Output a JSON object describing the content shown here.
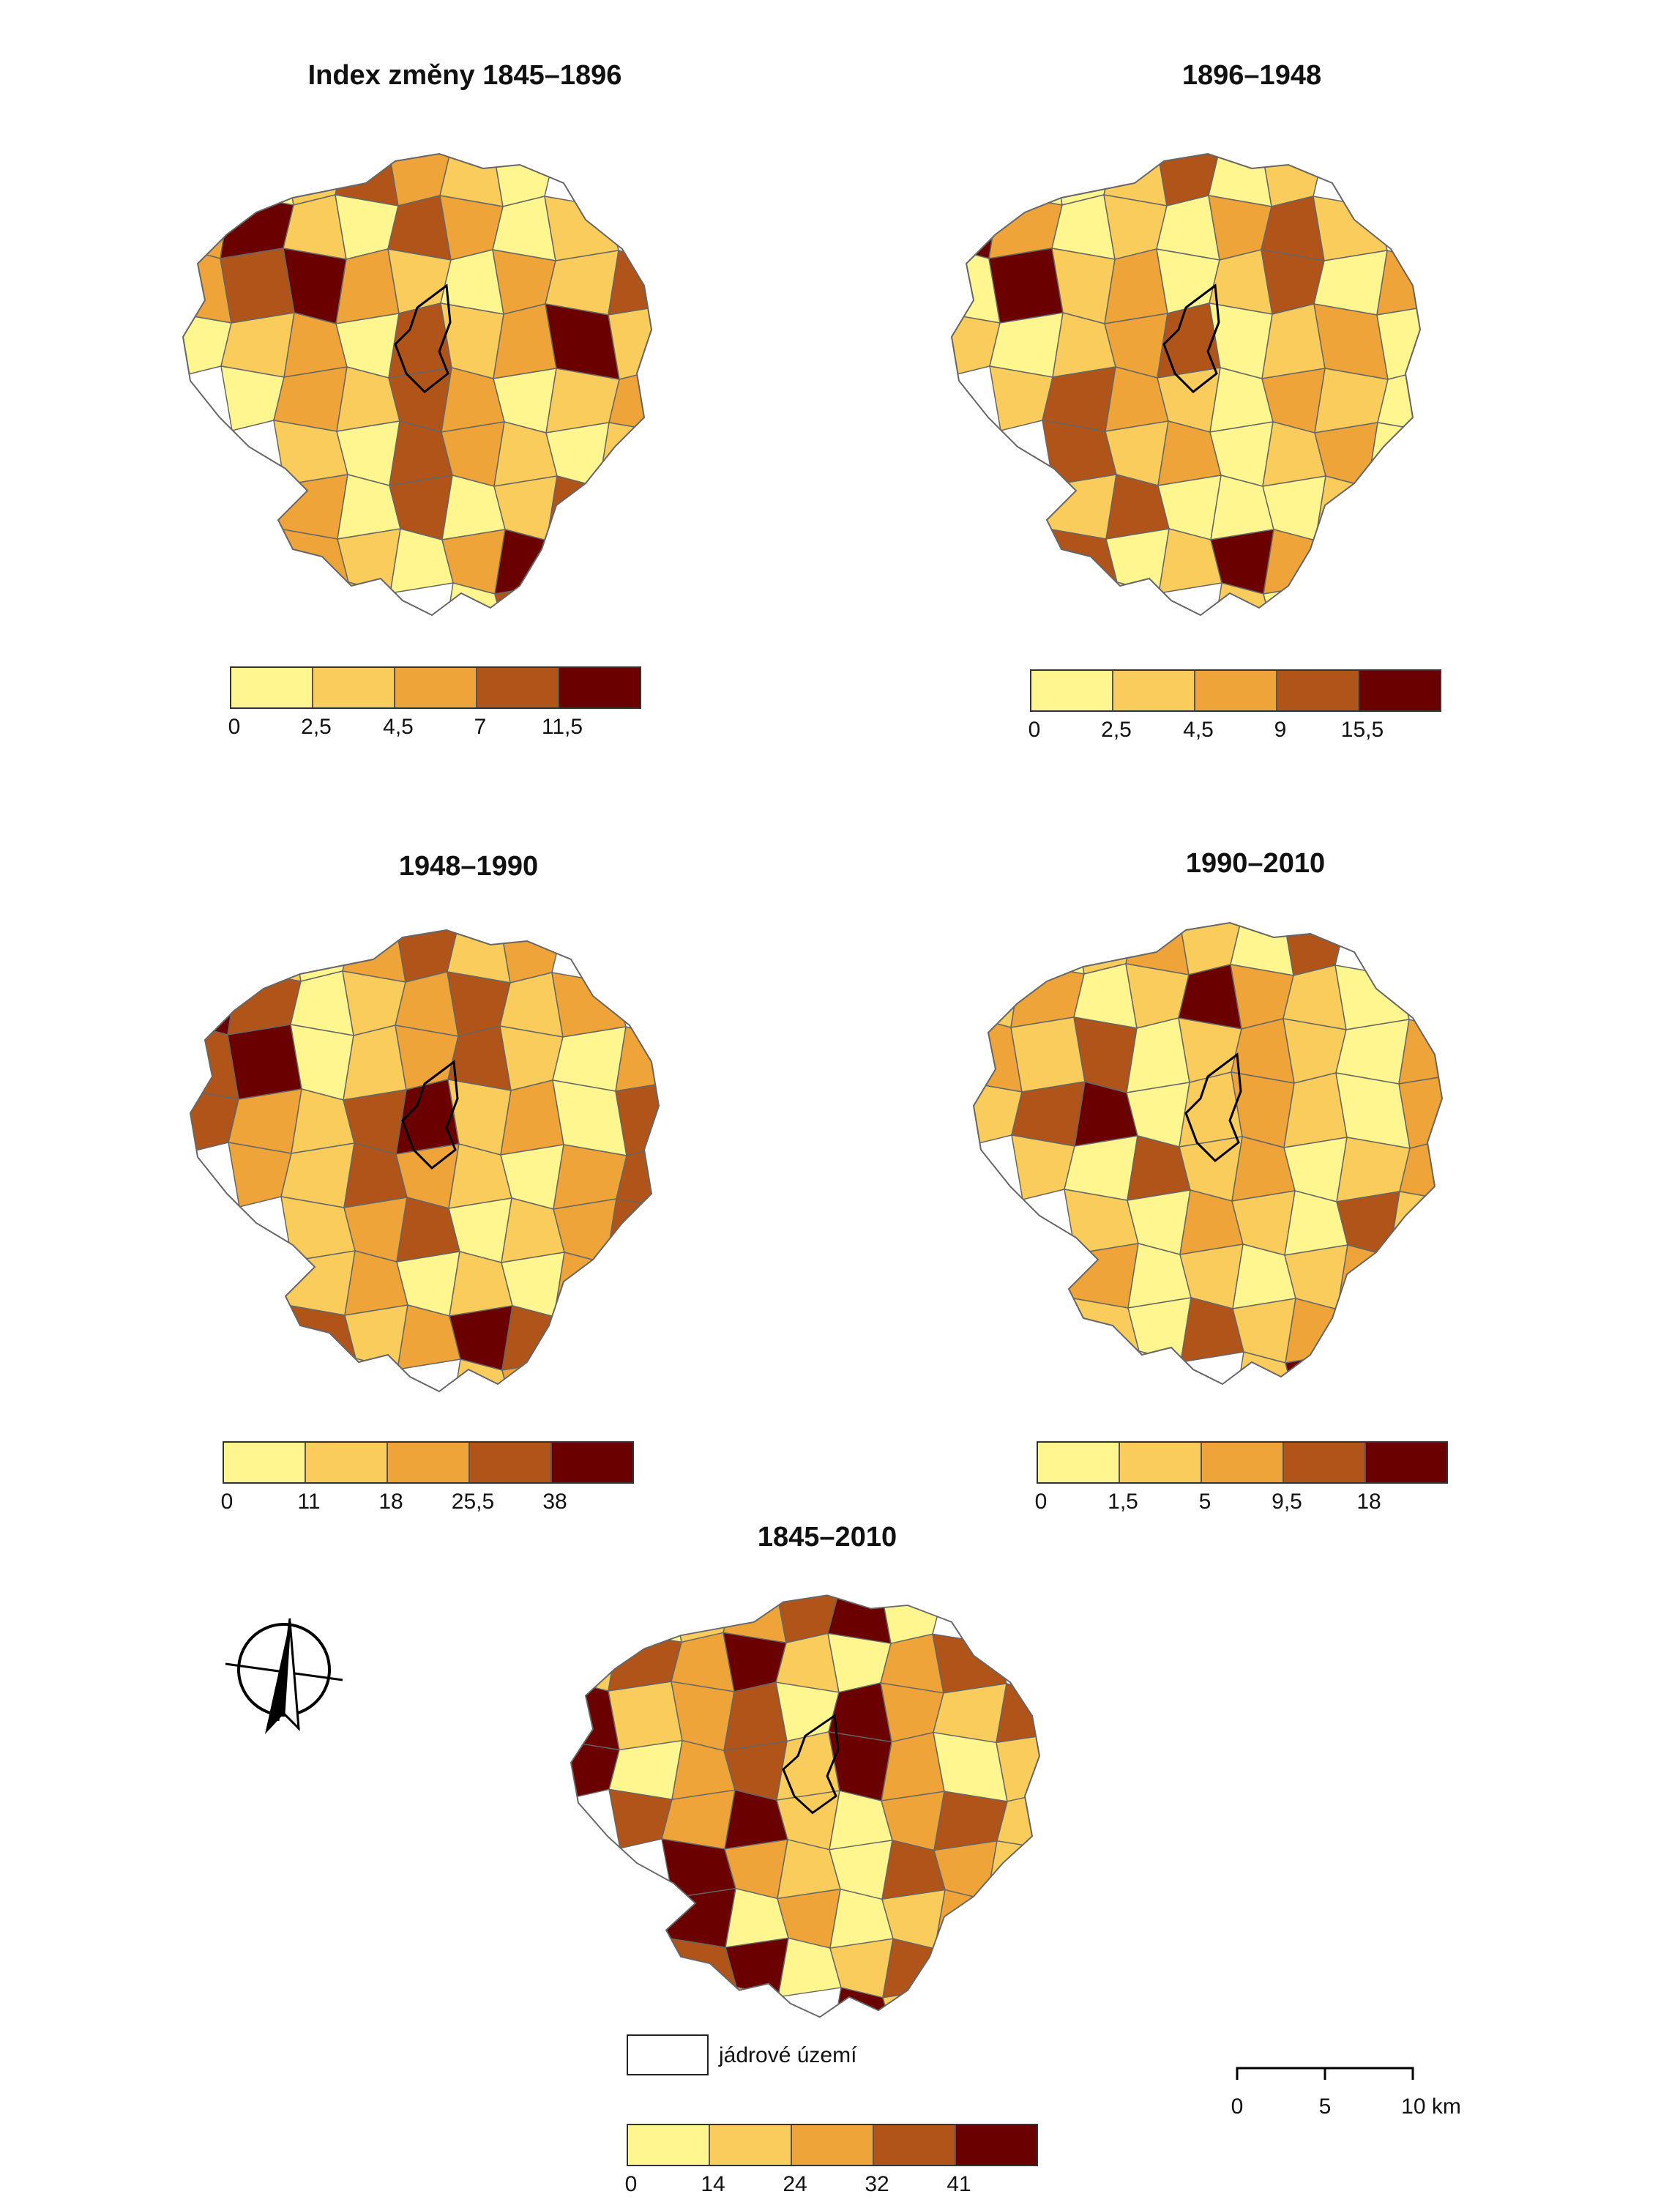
{
  "colors": {
    "class_1": "#FFF68F",
    "class_2": "#F9CC5C",
    "class_3": "#EFA43A",
    "class_4": "#B0541A",
    "class_5": "#6B0000",
    "border": "#666666",
    "core_outline": "#000000"
  },
  "maps": [
    {
      "title": "Index změny 1845–1896",
      "breaks": [
        "0",
        "2,5",
        "4,5",
        "7",
        "11,5"
      ],
      "pattern": [
        0,
        1,
        3,
        2,
        1,
        0,
        2,
        4,
        1,
        0,
        3,
        2,
        0,
        1,
        2,
        3,
        4,
        2,
        1,
        0,
        2,
        1,
        3,
        0,
        1,
        2,
        0,
        3,
        1,
        2,
        4,
        1,
        0,
        2,
        1,
        3,
        2,
        0,
        1,
        2,
        1,
        0,
        3,
        2,
        1,
        0,
        1,
        2,
        0,
        3
      ]
    },
    {
      "title": "1896–1948",
      "breaks": [
        "0",
        "2,5",
        "4,5",
        "9",
        "15,5"
      ],
      "pattern": [
        0,
        0,
        1,
        3,
        0,
        1,
        4,
        2,
        0,
        1,
        0,
        2,
        3,
        1,
        0,
        4,
        1,
        2,
        0,
        1,
        3,
        0,
        2,
        1,
        0,
        1,
        2,
        3,
        0,
        1,
        2,
        0,
        1,
        3,
        2,
        1,
        0,
        2,
        1,
        0,
        3,
        1,
        2,
        0,
        1,
        2,
        0,
        1,
        3,
        0
      ]
    },
    {
      "title": "1948–1990",
      "breaks": [
        "0",
        "11",
        "18",
        "25,5",
        "38"
      ],
      "pattern": [
        1,
        0,
        2,
        3,
        1,
        2,
        4,
        3,
        0,
        1,
        2,
        3,
        1,
        2,
        3,
        4,
        0,
        1,
        2,
        3,
        1,
        0,
        2,
        3,
        2,
        1,
        3,
        4,
        1,
        2,
        0,
        3,
        2,
        1,
        3,
        2,
        1,
        0,
        2,
        3,
        1,
        2,
        3,
        0,
        1,
        2,
        3,
        1,
        2,
        0
      ]
    },
    {
      "title": "1990–2010",
      "breaks": [
        "0",
        "1,5",
        "5",
        "9,5",
        "18"
      ],
      "pattern": [
        0,
        1,
        2,
        1,
        0,
        3,
        1,
        2,
        0,
        1,
        4,
        2,
        1,
        0,
        2,
        1,
        3,
        0,
        1,
        2,
        1,
        0,
        2,
        1,
        3,
        4,
        0,
        1,
        2,
        1,
        0,
        2,
        1,
        0,
        3,
        1,
        2,
        0,
        1,
        2,
        1,
        0,
        2,
        1,
        0,
        3,
        1,
        2,
        0,
        1
      ]
    },
    {
      "title": "1845–2010",
      "breaks": [
        "0",
        "14",
        "24",
        "32",
        "41"
      ],
      "pattern": [
        0,
        1,
        2,
        3,
        4,
        0,
        1,
        3,
        2,
        4,
        1,
        0,
        2,
        3,
        4,
        1,
        2,
        3,
        0,
        4,
        2,
        1,
        3,
        4,
        0,
        2,
        3,
        1,
        4,
        2,
        0,
        1,
        3,
        2,
        4,
        1,
        0,
        2,
        3,
        1,
        4,
        2,
        1,
        0,
        3,
        2,
        1,
        4,
        0,
        2
      ]
    }
  ],
  "core_legend_label": "jádrové území",
  "scale": {
    "ticks": [
      "0",
      "5",
      "10 km"
    ]
  },
  "north_arrow": "north-arrow-icon"
}
